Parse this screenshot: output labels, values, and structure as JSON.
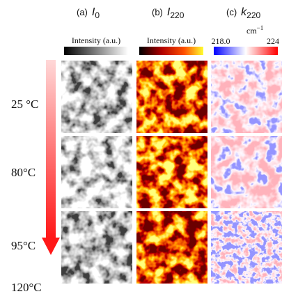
{
  "panels": [
    {
      "label": "(a)",
      "symbol": "I",
      "subscript": "0",
      "colorbar_label": "Intensity (a.u.)"
    },
    {
      "label": "(b)",
      "symbol": "I",
      "subscript": "220",
      "colorbar_label": "Intensity (a.u.)"
    },
    {
      "label": "(c)",
      "symbol": "k",
      "subscript": "220",
      "colorbar_min": "218.0",
      "colorbar_max": "224",
      "colorbar_unit": "cm",
      "colorbar_unit_exp": "−1"
    }
  ],
  "temperatures": [
    "25 °C",
    "80°C",
    "95°C",
    "120°C"
  ]
}
